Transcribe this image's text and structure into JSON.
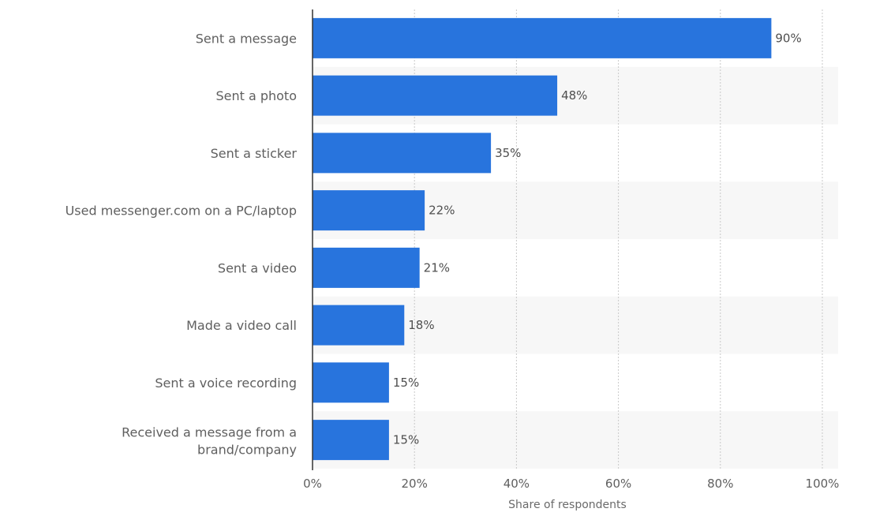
{
  "colors": {
    "bar": "#2874dd",
    "band": "#f7f7f7",
    "grid": "#c9c9c9",
    "axis": "#333333"
  },
  "chart_data": {
    "type": "bar",
    "orientation": "horizontal",
    "categories": [
      "Sent a message",
      "Sent a photo",
      "Sent a sticker",
      "Used messenger.com on a PC/laptop",
      "Sent a video",
      "Made a video call",
      "Sent a voice recording",
      "Received a message from a brand/company"
    ],
    "values": [
      90,
      48,
      35,
      22,
      21,
      18,
      15,
      15
    ],
    "value_labels": [
      "90%",
      "48%",
      "35%",
      "22%",
      "21%",
      "18%",
      "15%",
      "15%"
    ],
    "xlabel": "Share of respondents",
    "xlim": [
      0,
      100
    ],
    "xticks": [
      "0%",
      "20%",
      "40%",
      "60%",
      "80%",
      "100%"
    ],
    "grid": true,
    "legend": "none"
  }
}
